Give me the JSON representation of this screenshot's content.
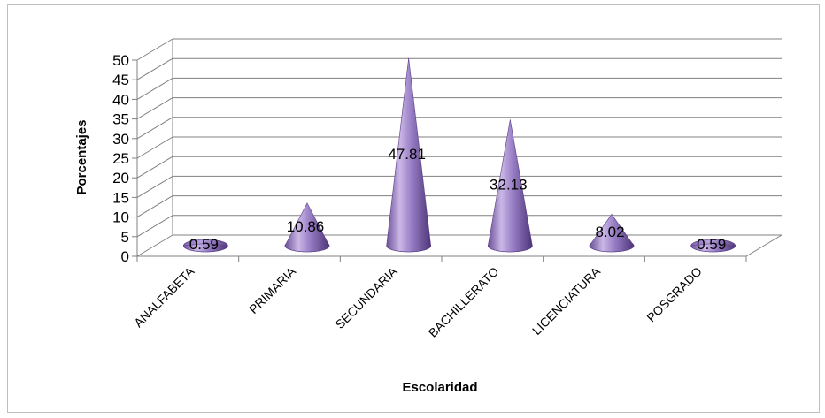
{
  "chart_data": {
    "type": "bar",
    "style": "3d-cone",
    "categories": [
      "ANALFABETA",
      "PRIMARIA",
      "SECUNDARIA",
      "BACHILLERATO",
      "LICENCIATURA",
      "POSGRADO"
    ],
    "values": [
      0.59,
      10.86,
      47.81,
      32.13,
      8.02,
      0.59
    ],
    "data_labels": [
      "0.59",
      "10.86",
      "47.81",
      "32.13",
      "8.02",
      "0.59"
    ],
    "xlabel": "Escolaridad",
    "ylabel": "Porcentajes",
    "ylim": [
      0,
      50
    ],
    "yticks": [
      "0",
      "5",
      "10",
      "15",
      "20",
      "25",
      "30",
      "35",
      "40",
      "45",
      "50"
    ],
    "grid": true,
    "legend": "none",
    "colors": {
      "cone": "#8a6fb8",
      "cone_light": "#cbb8e6",
      "cone_dark": "#5a3f86",
      "grid": "#808080"
    }
  }
}
